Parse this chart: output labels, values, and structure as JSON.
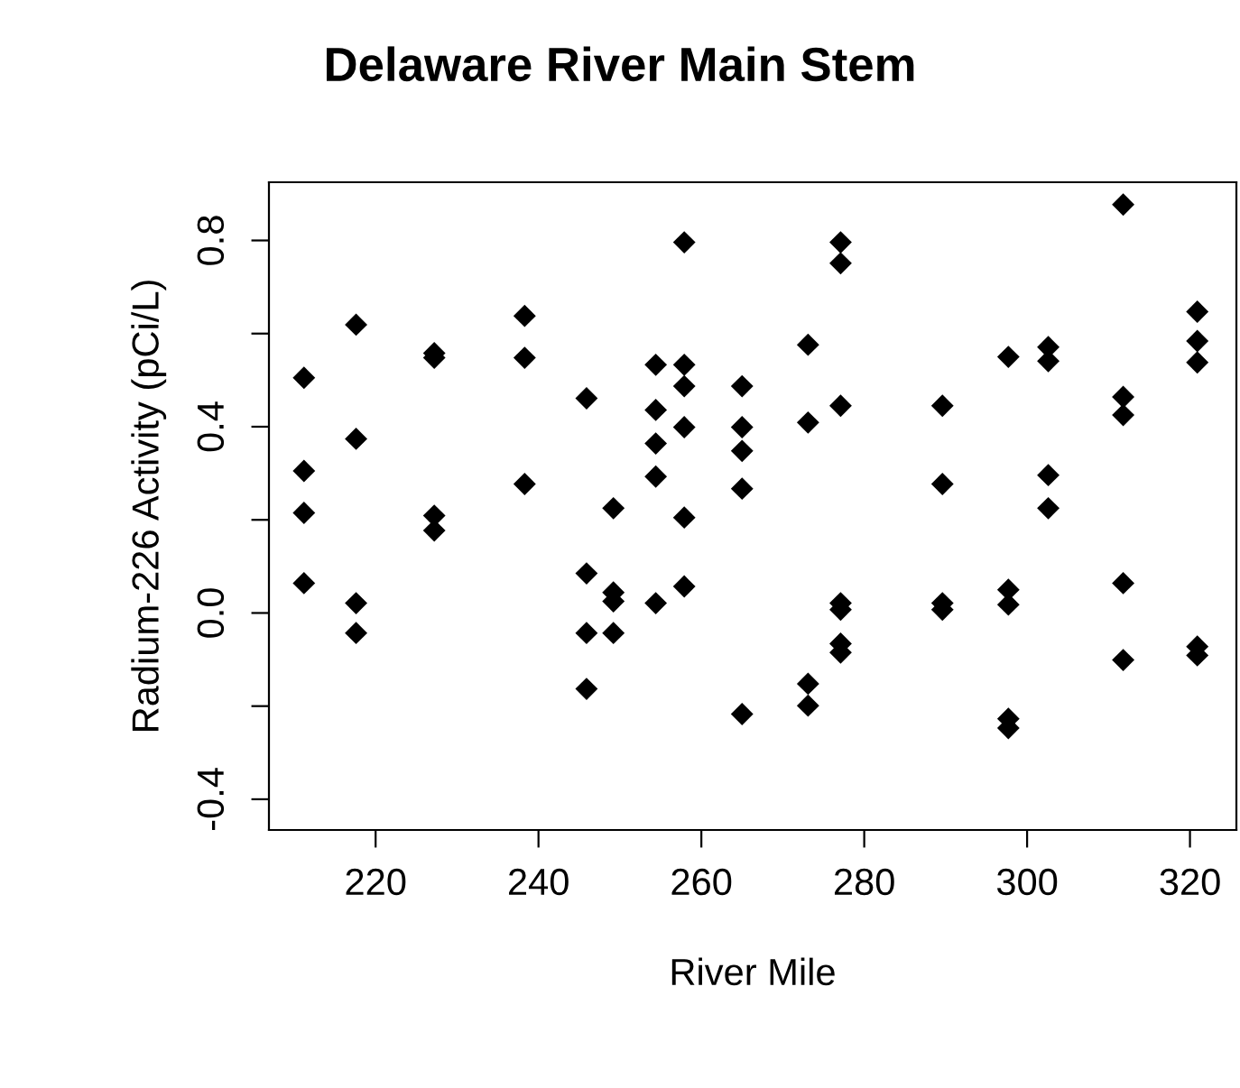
{
  "chart_data": {
    "type": "scatter",
    "title": "Delaware River Main Stem",
    "xlabel": "River Mile",
    "ylabel": "Radium-226 Activity (pCi/L)",
    "marker": "diamond",
    "color": "#000000",
    "grid": false,
    "legend": false,
    "x": [
      211.2,
      211.2,
      211.2,
      211.2,
      217.6,
      217.6,
      217.6,
      217.6,
      227.2,
      227.2,
      227.2,
      227.2,
      238.3,
      238.3,
      238.3,
      245.9,
      245.9,
      245.9,
      245.9,
      249.2,
      249.2,
      249.2,
      249.2,
      254.4,
      254.4,
      254.4,
      254.4,
      254.4,
      257.9,
      257.9,
      257.9,
      257.9,
      257.9,
      257.9,
      265.0,
      265.0,
      265.0,
      265.0,
      265.0,
      273.1,
      273.1,
      273.1,
      273.1,
      277.1,
      277.1,
      277.1,
      277.1,
      277.1,
      277.1,
      277.1,
      289.6,
      289.6,
      289.6,
      289.6,
      297.7,
      297.7,
      297.7,
      297.7,
      297.7,
      302.6,
      302.6,
      302.6,
      302.6,
      311.8,
      311.8,
      311.8,
      311.8,
      311.8,
      320.9,
      320.9,
      320.9,
      320.9,
      320.9
    ],
    "values": [
      0.505,
      0.305,
      0.215,
      0.064,
      0.619,
      0.374,
      0.021,
      -0.043,
      0.558,
      0.548,
      0.209,
      0.177,
      0.638,
      0.548,
      0.277,
      0.461,
      0.085,
      -0.043,
      -0.163,
      0.225,
      0.044,
      0.025,
      -0.043,
      0.533,
      0.436,
      0.364,
      0.293,
      0.021,
      0.796,
      0.533,
      0.487,
      0.399,
      0.205,
      0.057,
      0.487,
      0.399,
      0.348,
      0.267,
      -0.217,
      0.576,
      0.409,
      -0.152,
      -0.199,
      0.796,
      0.751,
      0.445,
      0.021,
      0.007,
      -0.066,
      -0.085,
      0.445,
      0.277,
      0.021,
      0.007,
      0.55,
      0.05,
      0.018,
      -0.227,
      -0.247,
      0.571,
      0.541,
      0.296,
      0.225,
      0.877,
      0.464,
      0.425,
      0.064,
      -0.101,
      0.647,
      0.584,
      0.538,
      -0.072,
      -0.091
    ],
    "xlim": [
      206.9,
      325.7
    ],
    "xticks": [
      220,
      240,
      260,
      280,
      300,
      320
    ],
    "ylim": [
      -0.466,
      0.925
    ],
    "yticks": [
      {
        "value": -0.4,
        "label": "-0.4"
      },
      {
        "value": -0.2,
        "label": null
      },
      {
        "value": 0.0,
        "label": "0.0"
      },
      {
        "value": 0.2,
        "label": null
      },
      {
        "value": 0.4,
        "label": "0.4"
      },
      {
        "value": 0.6,
        "label": null
      },
      {
        "value": 0.8,
        "label": "0.8"
      }
    ]
  }
}
